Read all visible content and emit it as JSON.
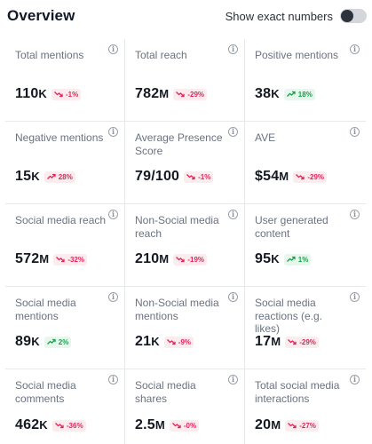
{
  "header": {
    "title": "Overview",
    "toggle_label": "Show exact numbers"
  },
  "metrics": [
    {
      "label": "Total mentions",
      "value": "110",
      "unit": "K",
      "change": "-1%",
      "trend": "down"
    },
    {
      "label": "Total reach",
      "value": "782",
      "unit": "M",
      "change": "-29%",
      "trend": "down"
    },
    {
      "label": "Positive mentions",
      "value": "38",
      "unit": "K",
      "change": "18%",
      "trend": "up"
    },
    {
      "label": "Negative mentions",
      "value": "15",
      "unit": "K",
      "change": "28%",
      "trend": "up-neg"
    },
    {
      "label": "Average Presence Score",
      "value": "79/100",
      "unit": "",
      "change": "-1%",
      "trend": "down"
    },
    {
      "label": "AVE",
      "value": "$54",
      "unit": "M",
      "change": "-29%",
      "trend": "down"
    },
    {
      "label": "Social media reach",
      "value": "572",
      "unit": "M",
      "change": "-32%",
      "trend": "down"
    },
    {
      "label": "Non-Social media reach",
      "value": "210",
      "unit": "M",
      "change": "-19%",
      "trend": "down"
    },
    {
      "label": "User generated content",
      "value": "95",
      "unit": "K",
      "change": "1%",
      "trend": "up"
    },
    {
      "label": "Social media mentions",
      "value": "89",
      "unit": "K",
      "change": "2%",
      "trend": "up"
    },
    {
      "label": "Non-Social media mentions",
      "value": "21",
      "unit": "K",
      "change": "-9%",
      "trend": "down"
    },
    {
      "label": "Social media reactions (e.g. likes)",
      "value": "17",
      "unit": "M",
      "change": "-29%",
      "trend": "down"
    },
    {
      "label": "Social media comments",
      "value": "462",
      "unit": "K",
      "change": "-36%",
      "trend": "down"
    },
    {
      "label": "Social media shares",
      "value": "2.5",
      "unit": "M",
      "change": "-0%",
      "trend": "down"
    },
    {
      "label": "Total social media interactions",
      "value": "20",
      "unit": "M",
      "change": "-27%",
      "trend": "down"
    }
  ],
  "info_glyph": "i",
  "colors": {
    "negative": "#e0245e",
    "positive": "#16a34a"
  }
}
